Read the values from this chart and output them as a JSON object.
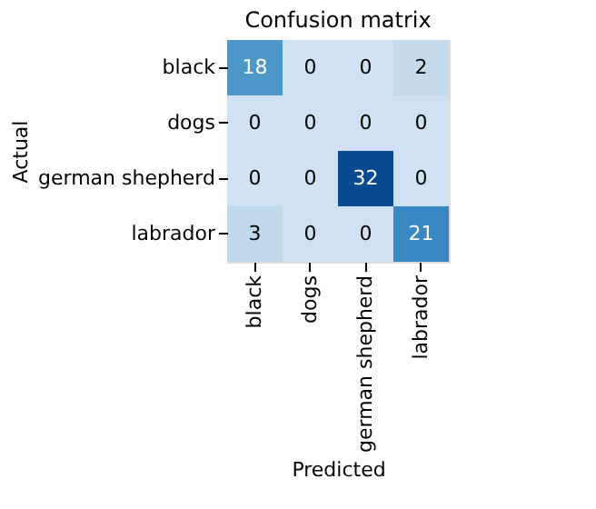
{
  "chart_data": {
    "type": "heatmap",
    "title": "Confusion matrix",
    "xlabel": "Predicted",
    "ylabel": "Actual",
    "categories": [
      "black",
      "dogs",
      "german shepherd",
      "labrador"
    ],
    "y_categories": [
      "black",
      "dogs",
      "german shepherd",
      "labrador"
    ],
    "cells": [
      [
        18,
        0,
        0,
        2
      ],
      [
        0,
        0,
        0,
        0
      ],
      [
        0,
        0,
        32,
        0
      ],
      [
        3,
        0,
        0,
        21
      ]
    ],
    "data_labels": true
  }
}
